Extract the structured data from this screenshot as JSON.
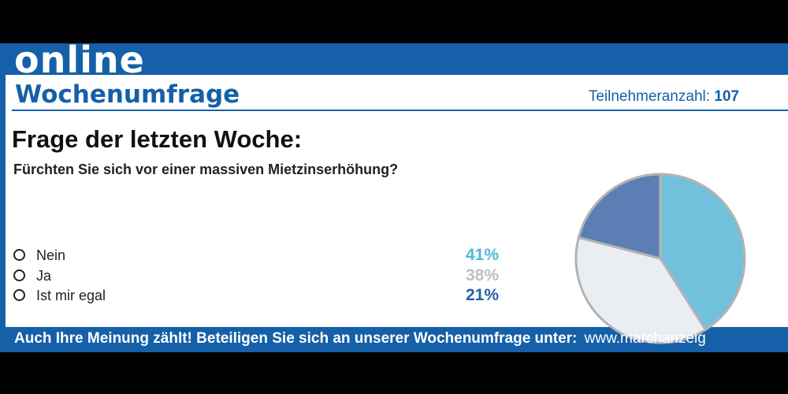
{
  "header": {
    "brand": "online",
    "title": "Wochenumfrage",
    "participants_label": "Teilnehmeranzahl:",
    "participants_count": "107"
  },
  "question": {
    "heading": "Frage der letzten Woche:",
    "text": "Fürchten Sie sich vor einer massiven Mietzinserhöhung?"
  },
  "options": [
    {
      "label": "Nein",
      "percent": "41%"
    },
    {
      "label": "Ja",
      "percent": "38%"
    },
    {
      "label": "Ist mir egal",
      "percent": "21%"
    }
  ],
  "footer": {
    "cta": "Auch Ihre Meinung zählt! Beteiligen Sie sich an unserer Wochenumfrage unter:",
    "url": "www.marchanzeig"
  },
  "colors": {
    "brand_blue": "#1560a8",
    "nein": "#72c1dc",
    "ja": "#eaedf2",
    "egal": "#5b7fb5",
    "pie_border": "#b3b3b3"
  },
  "chart_data": {
    "type": "pie",
    "categories": [
      "Nein",
      "Ja",
      "Ist mir egal"
    ],
    "values": [
      41,
      38,
      21
    ],
    "label_colors": [
      "#4fb8de",
      "#bfbfbf",
      "#2a5ea6"
    ]
  }
}
